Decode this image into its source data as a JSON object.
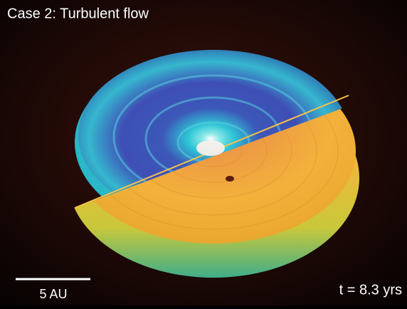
{
  "title": "Case 2: Turbulent flow",
  "scale_bar": {
    "label": "5 AU"
  },
  "time_label": "t = 8.3 yrs"
}
